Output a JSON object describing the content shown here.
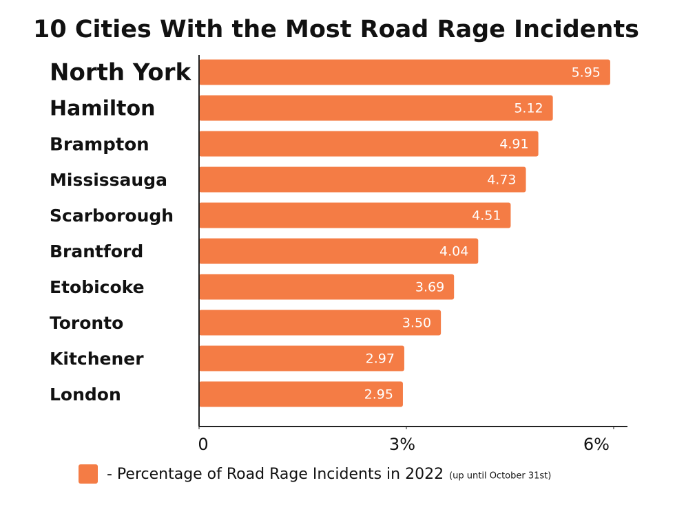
{
  "chart_data": {
    "type": "hbar",
    "title": "10 Cities With the Most Road Rage Incidents",
    "categories": [
      "North York",
      "Hamilton",
      "Brampton",
      "Mississauga",
      "Scarborough",
      "Brantford",
      "Etobicoke",
      "Toronto",
      "Kitchener",
      "London"
    ],
    "series": [
      {
        "name": "- Percentage of Road Rage Incidents in 2022",
        "color": "#f47c45",
        "values": [
          5.95,
          5.12,
          4.91,
          4.73,
          4.51,
          4.04,
          3.69,
          3.5,
          2.97,
          2.95
        ],
        "value_labels": [
          "5.95",
          "5.12",
          "4.91",
          "4.73",
          "4.51",
          "4.04",
          "3.69",
          "3.50",
          "2.97",
          "2.95"
        ]
      }
    ],
    "legend_note": "(up until October 31st)",
    "xlim": [
      0,
      6.2
    ],
    "xticks": [
      0,
      {
        "value": 3,
        "label": "3%"
      },
      {
        "value": 6,
        "label": "6%"
      }
    ]
  }
}
